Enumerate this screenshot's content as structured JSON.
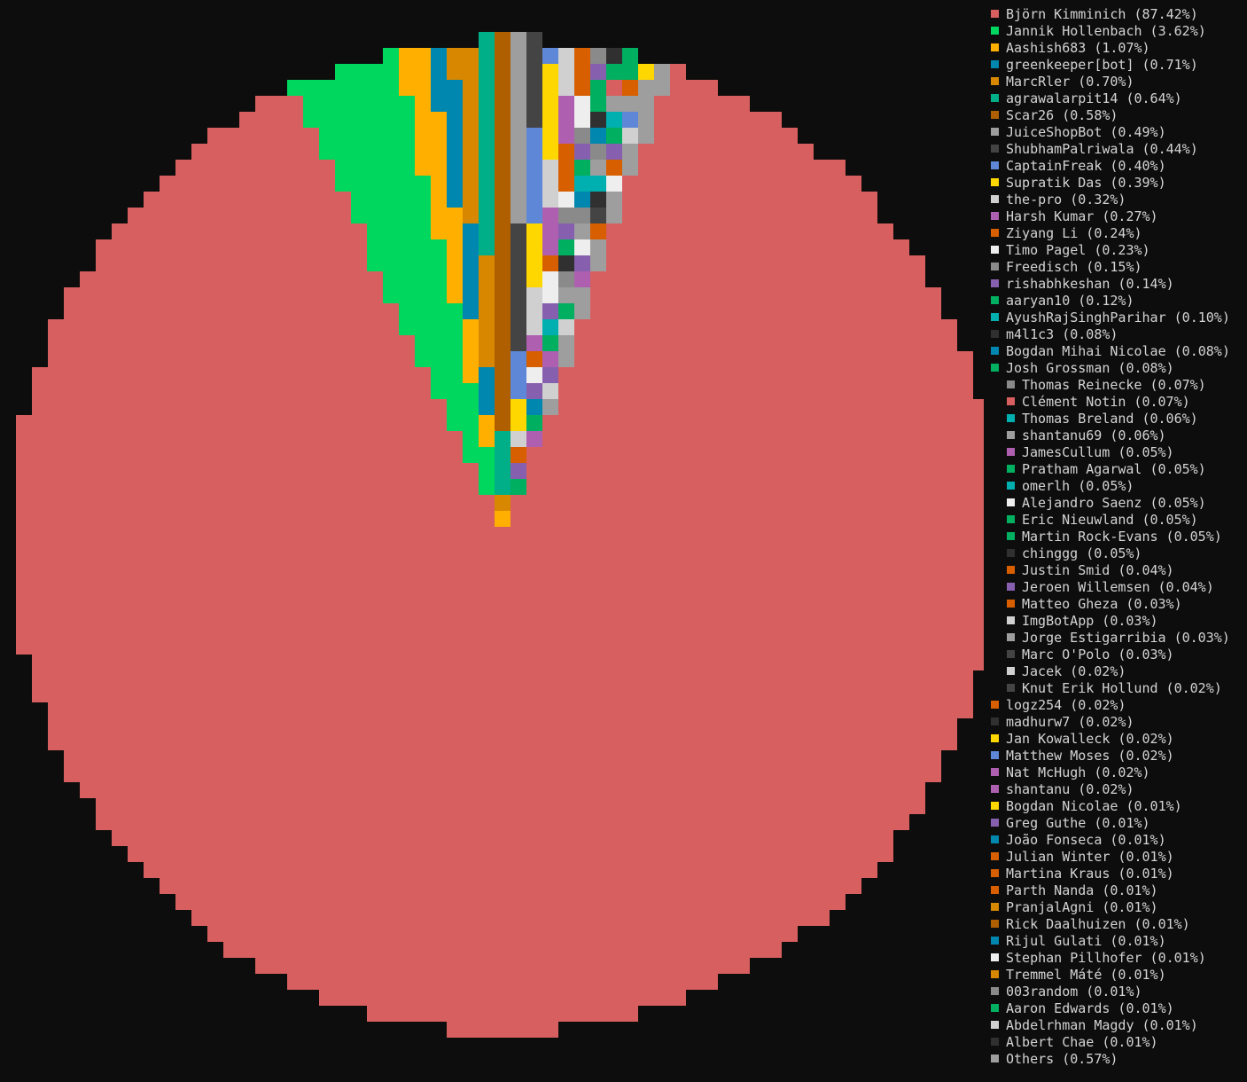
{
  "chart_data": {
    "type": "pie",
    "slices": [
      {
        "label": "Björn Kimminich (87.42%)",
        "value": 87.42,
        "color": "#d85f5f"
      },
      {
        "label": "Jannik Hollenbach (3.62%)",
        "value": 3.62,
        "color": "#00d75f"
      },
      {
        "label": "Aashish683 (1.07%)",
        "value": 1.07,
        "color": "#ffaf00"
      },
      {
        "label": "greenkeeper[bot] (0.71%)",
        "value": 0.71,
        "color": "#0087af"
      },
      {
        "label": "MarcRler (0.70%)",
        "value": 0.7,
        "color": "#d78700"
      },
      {
        "label": "agrawalarpit14 (0.64%)",
        "value": 0.64,
        "color": "#00af87"
      },
      {
        "label": "Scar26 (0.58%)",
        "value": 0.58,
        "color": "#af5f00"
      },
      {
        "label": "JuiceShopBot (0.49%)",
        "value": 0.49,
        "color": "#9e9e9e"
      },
      {
        "label": "ShubhamPalriwala (0.44%)",
        "value": 0.44,
        "color": "#444444"
      },
      {
        "label": "CaptainFreak (0.40%)",
        "value": 0.4,
        "color": "#5f87d7"
      },
      {
        "label": "Supratik Das (0.39%)",
        "value": 0.39,
        "color": "#ffd700"
      },
      {
        "label": "the-pro (0.32%)",
        "value": 0.32,
        "color": "#d0d0d0"
      },
      {
        "label": "Harsh Kumar (0.27%)",
        "value": 0.27,
        "color": "#af5faf"
      },
      {
        "label": "Ziyang Li (0.24%)",
        "value": 0.24,
        "color": "#d75f00"
      },
      {
        "label": "Timo Pagel (0.23%)",
        "value": 0.23,
        "color": "#eeeeee"
      },
      {
        "label": "Freedisch (0.15%)",
        "value": 0.15,
        "color": "#8a8a8a"
      },
      {
        "label": "rishabhkeshan (0.14%)",
        "value": 0.14,
        "color": "#875faf"
      },
      {
        "label": "aaryan10 (0.12%)",
        "value": 0.12,
        "color": "#00af5f"
      },
      {
        "label": "AyushRajSinghParihar (0.10%)",
        "value": 0.1,
        "color": "#00afaf"
      },
      {
        "label": "m4l1c3 (0.08%)",
        "value": 0.08,
        "color": "#303030"
      },
      {
        "label": "Bogdan Mihai Nicolae (0.08%)",
        "value": 0.08,
        "color": "#0087af"
      },
      {
        "label": "Josh Grossman (0.08%)",
        "value": 0.08,
        "color": "#00af5f"
      },
      {
        "label": "Thomas Reinecke (0.07%)",
        "value": 0.07,
        "color": "#8a8a8a",
        "indent": true
      },
      {
        "label": "Clément Notin (0.07%)",
        "value": 0.07,
        "color": "#d85f5f",
        "indent": true
      },
      {
        "label": "Thomas Breland (0.06%)",
        "value": 0.06,
        "color": "#00afaf",
        "indent": true
      },
      {
        "label": "shantanu69 (0.06%)",
        "value": 0.06,
        "color": "#9e9e9e",
        "indent": true
      },
      {
        "label": "JamesCullum (0.05%)",
        "value": 0.05,
        "color": "#af5faf",
        "indent": true
      },
      {
        "label": "Pratham Agarwal (0.05%)",
        "value": 0.05,
        "color": "#00af5f",
        "indent": true
      },
      {
        "label": "omerlh (0.05%)",
        "value": 0.05,
        "color": "#00afaf",
        "indent": true
      },
      {
        "label": "Alejandro Saenz (0.05%)",
        "value": 0.05,
        "color": "#eeeeee",
        "indent": true
      },
      {
        "label": "Eric Nieuwland (0.05%)",
        "value": 0.05,
        "color": "#00af5f",
        "indent": true
      },
      {
        "label": "Martin Rock-Evans (0.05%)",
        "value": 0.05,
        "color": "#00af5f",
        "indent": true
      },
      {
        "label": "chinggg (0.05%)",
        "value": 0.05,
        "color": "#303030",
        "indent": true
      },
      {
        "label": "Justin Smid (0.04%)",
        "value": 0.04,
        "color": "#d75f00",
        "indent": true
      },
      {
        "label": "Jeroen Willemsen (0.04%)",
        "value": 0.04,
        "color": "#875faf",
        "indent": true
      },
      {
        "label": "Matteo Gheza (0.03%)",
        "value": 0.03,
        "color": "#d75f00",
        "indent": true
      },
      {
        "label": "ImgBotApp (0.03%)",
        "value": 0.03,
        "color": "#d0d0d0",
        "indent": true
      },
      {
        "label": "Jorge Estigarribia (0.03%)",
        "value": 0.03,
        "color": "#9e9e9e",
        "indent": true
      },
      {
        "label": "Marc O'Polo (0.03%)",
        "value": 0.03,
        "color": "#444444",
        "indent": true
      },
      {
        "label": "Jacek (0.02%)",
        "value": 0.02,
        "color": "#d0d0d0",
        "indent": true
      },
      {
        "label": "Knut Erik Hollund (0.02%)",
        "value": 0.02,
        "color": "#444444",
        "indent": true
      },
      {
        "label": "logz254 (0.02%)",
        "value": 0.02,
        "color": "#d75f00"
      },
      {
        "label": "madhurw7 (0.02%)",
        "value": 0.02,
        "color": "#303030"
      },
      {
        "label": "Jan Kowalleck (0.02%)",
        "value": 0.02,
        "color": "#ffd700"
      },
      {
        "label": "Matthew Moses (0.02%)",
        "value": 0.02,
        "color": "#5f87d7"
      },
      {
        "label": "Nat McHugh (0.02%)",
        "value": 0.02,
        "color": "#af5faf"
      },
      {
        "label": "shantanu (0.02%)",
        "value": 0.02,
        "color": "#af5faf"
      },
      {
        "label": "Bogdan Nicolae (0.01%)",
        "value": 0.01,
        "color": "#ffd700"
      },
      {
        "label": "Greg Guthe (0.01%)",
        "value": 0.01,
        "color": "#875faf"
      },
      {
        "label": "João Fonseca (0.01%)",
        "value": 0.01,
        "color": "#0087af"
      },
      {
        "label": "Julian Winter (0.01%)",
        "value": 0.01,
        "color": "#d75f00"
      },
      {
        "label": "Martina Kraus (0.01%)",
        "value": 0.01,
        "color": "#d75f00"
      },
      {
        "label": "Parth Nanda (0.01%)",
        "value": 0.01,
        "color": "#d75f00"
      },
      {
        "label": "PranjalAgni (0.01%)",
        "value": 0.01,
        "color": "#d78700"
      },
      {
        "label": "Rick Daalhuizen (0.01%)",
        "value": 0.01,
        "color": "#af5f00"
      },
      {
        "label": "Rijul Gulati (0.01%)",
        "value": 0.01,
        "color": "#0087af"
      },
      {
        "label": "Stephan Pillhofer (0.01%)",
        "value": 0.01,
        "color": "#eeeeee"
      },
      {
        "label": "Tremmel Máté (0.01%)",
        "value": 0.01,
        "color": "#d78700"
      },
      {
        "label": "003random (0.01%)",
        "value": 0.01,
        "color": "#8a8a8a"
      },
      {
        "label": "Aaron Edwards (0.01%)",
        "value": 0.01,
        "color": "#00af5f"
      },
      {
        "label": "Abdelrhman Magdy (0.01%)",
        "value": 0.01,
        "color": "#d0d0d0"
      },
      {
        "label": "Albert Chae (0.01%)",
        "value": 0.01,
        "color": "#303030"
      },
      {
        "label": "Others (0.57%)",
        "value": 0.57,
        "color": "#9e9e9e"
      }
    ],
    "background": "#0d0d0d"
  }
}
